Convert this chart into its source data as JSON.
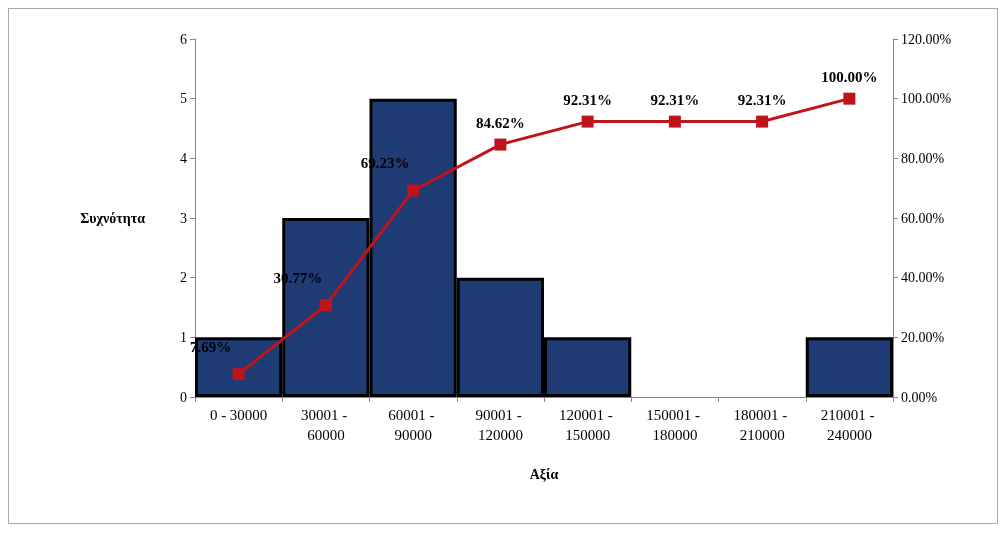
{
  "chart_data": {
    "type": "bar",
    "xlabel": "Αξία",
    "ylabel": "Συχνότητα",
    "categories": [
      "0 - 30000",
      "30001 - 60000",
      "60001 - 90000",
      "90001 - 120000",
      "120001 - 150000",
      "150001 - 180000",
      "180001 - 210000",
      "210001 - 240000"
    ],
    "series": [
      {
        "color": "#1f3b73",
        "values": [
          1,
          3,
          5,
          2,
          1,
          0,
          0,
          1
        ]
      },
      {
        "type": "line",
        "axis": "y2",
        "color": "#c0141c",
        "marker": "square",
        "values": [
          7.69,
          30.77,
          69.23,
          84.62,
          92.31,
          92.31,
          92.31,
          100
        ],
        "value_labels": [
          "7.69%",
          "30.77%",
          "69.23%",
          "84.62%",
          "92.31%",
          "92.31%",
          "92.31%",
          "100.00%"
        ]
      }
    ],
    "ylim": [
      0,
      6
    ],
    "yticks": [
      0,
      1,
      2,
      3,
      4,
      5,
      6
    ],
    "y2lim": [
      0,
      120
    ],
    "y2ticks": [
      {
        "value": 0,
        "label": "0.00%"
      },
      {
        "value": 20,
        "label": "20.00%"
      },
      {
        "value": 40,
        "label": "40.00%"
      },
      {
        "value": 60,
        "label": "60.00%"
      },
      {
        "value": 80,
        "label": "80.00%"
      },
      {
        "value": 100,
        "label": "100.00%"
      },
      {
        "value": 120,
        "label": "120.00%"
      }
    ],
    "grid": false
  }
}
